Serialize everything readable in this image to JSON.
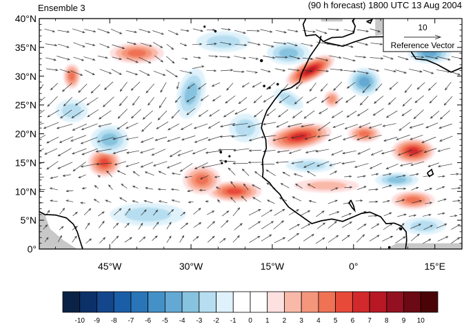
{
  "header": {
    "left_title": "Ensemble 3",
    "right_title": "(90 h forecast) 1800 UTC 13 Aug 2004"
  },
  "reference_vector": {
    "magnitude_label": "10",
    "caption": "Reference Vector"
  },
  "map": {
    "lon_range": [
      -58,
      20
    ],
    "lat_range": [
      0,
      40
    ],
    "lat_ticks": [
      {
        "value": 40,
        "label": "40°N"
      },
      {
        "value": 35,
        "label": "35°N"
      },
      {
        "value": 30,
        "label": "30°N"
      },
      {
        "value": 25,
        "label": "25°N"
      },
      {
        "value": 20,
        "label": "20°N"
      },
      {
        "value": 15,
        "label": "15°N"
      },
      {
        "value": 10,
        "label": "10°N"
      },
      {
        "value": 5,
        "label": "5°N"
      },
      {
        "value": 0,
        "label": "0°"
      }
    ],
    "lon_ticks": [
      {
        "value": -45,
        "label": "45°W"
      },
      {
        "value": -30,
        "label": "30°W"
      },
      {
        "value": -15,
        "label": "15°W"
      },
      {
        "value": 0,
        "label": "0°"
      },
      {
        "value": 15,
        "label": "15°E"
      }
    ],
    "colors": {
      "coast": "#000000",
      "missing": "#c8c8c8",
      "vector": "#303030"
    },
    "anomaly_blobs": [
      {
        "lon": -8,
        "lat": 31,
        "rlon": 5,
        "rlat": 1.8,
        "value": 7,
        "rot": -28
      },
      {
        "lon": -10,
        "lat": 19.5,
        "rlon": 6,
        "rlat": 2.2,
        "value": 6,
        "rot": -10
      },
      {
        "lon": -22,
        "lat": 10,
        "rlon": 5,
        "rlat": 1.8,
        "value": 5,
        "rot": 0
      },
      {
        "lon": -28,
        "lat": 12,
        "rlon": 3.5,
        "rlat": 2.5,
        "value": 4,
        "rot": 0
      },
      {
        "lon": -46,
        "lat": 15,
        "rlon": 3,
        "rlat": 2.5,
        "value": 5,
        "rot": 0
      },
      {
        "lon": -52,
        "lat": 30,
        "rlon": 1.6,
        "rlat": 2.2,
        "value": 4,
        "rot": 0
      },
      {
        "lon": -40,
        "lat": 34,
        "rlon": 5,
        "rlat": 1.8,
        "value": 4,
        "rot": 0
      },
      {
        "lon": 11,
        "lat": 17,
        "rlon": 4,
        "rlat": 2.2,
        "value": 6,
        "rot": 0
      },
      {
        "lon": 2,
        "lat": 20,
        "rlon": 3,
        "rlat": 1.5,
        "value": 4,
        "rot": 0
      },
      {
        "lon": 11,
        "lat": 8.5,
        "rlon": 4,
        "rlat": 1.6,
        "value": 4,
        "rot": 0
      },
      {
        "lon": -4,
        "lat": 26,
        "rlon": 1.5,
        "rlat": 1.5,
        "value": 3,
        "rot": 0
      },
      {
        "lon": -5,
        "lat": 11,
        "rlon": 6,
        "rlat": 1.2,
        "value": 2,
        "rot": 0
      },
      {
        "lon": 2,
        "lat": 29,
        "rlon": 3,
        "rlat": 2.5,
        "value": -4,
        "rot": 0
      },
      {
        "lon": 14,
        "lat": 34,
        "rlon": 4,
        "rlat": 1.8,
        "value": -4,
        "rot": 0
      },
      {
        "lon": -30,
        "lat": 27,
        "rlon": 2.5,
        "rlat": 4.5,
        "value": -3,
        "rot": 15
      },
      {
        "lon": -45,
        "lat": 19,
        "rlon": 3.5,
        "rlat": 2.5,
        "value": -3,
        "rot": 0
      },
      {
        "lon": -12,
        "lat": 34,
        "rlon": 4,
        "rlat": 2,
        "value": -3,
        "rot": 0
      },
      {
        "lon": -38,
        "lat": 6,
        "rlon": 7,
        "rlat": 2,
        "value": -2,
        "rot": 0
      },
      {
        "lon": -20,
        "lat": 21,
        "rlon": 3,
        "rlat": 2.5,
        "value": -2,
        "rot": 0
      },
      {
        "lon": -8,
        "lat": 14.5,
        "rlon": 4.5,
        "rlat": 1.2,
        "value": -2,
        "rot": 0
      },
      {
        "lon": 8,
        "lat": 12,
        "rlon": 4,
        "rlat": 1.3,
        "value": -3,
        "rot": 0
      },
      {
        "lon": -52,
        "lat": 24,
        "rlon": 3,
        "rlat": 2,
        "value": -2,
        "rot": 0
      },
      {
        "lon": -24,
        "lat": 36,
        "rlon": 5,
        "rlat": 1.8,
        "value": -2,
        "rot": 0
      },
      {
        "lon": 13,
        "lat": 4,
        "rlon": 4,
        "rlat": 1.5,
        "value": -2,
        "rot": 0
      },
      {
        "lon": -12,
        "lat": 26,
        "rlon": 3,
        "rlat": 1.4,
        "value": -2,
        "rot": 30
      }
    ]
  },
  "colorbar": {
    "labels": [
      "-10",
      "-9",
      "-8",
      "-7",
      "-6",
      "-5",
      "-4",
      "-3",
      "-2",
      "-1",
      "0",
      "1",
      "2",
      "3",
      "4",
      "5",
      "6",
      "7",
      "8",
      "9",
      "10"
    ],
    "colors": [
      "#0a2246",
      "#0c3169",
      "#14468b",
      "#1a5ea8",
      "#2a75b8",
      "#4491c7",
      "#63a9d3",
      "#87c3df",
      "#b6def0",
      "#dff2fb",
      "#ffffff",
      "#ffffff",
      "#fde0e0",
      "#f9b9a8",
      "#f4967c",
      "#ef7254",
      "#e84a3a",
      "#d22a2c",
      "#b81824",
      "#921020",
      "#6b0914",
      "#4a0407"
    ]
  }
}
